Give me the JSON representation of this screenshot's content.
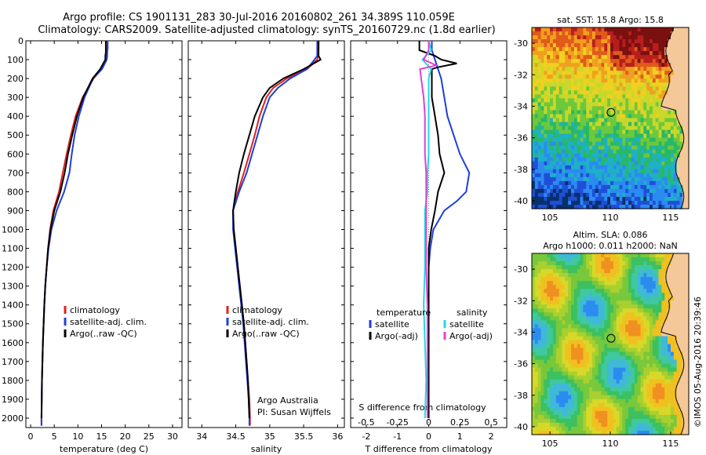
{
  "header": {
    "line1": "Argo profile: CS 1901131_283 30-Jul-2016 20160802_261 34.389S 110.059E",
    "line2": "Climatology: CARS2009. Satellite-adjusted climatology: synTS_20160729.nc (1.8d earlier)"
  },
  "credit": "©IMOS 05-Aug-2016 20:39:46",
  "colors": {
    "climatology": "#e02020",
    "satellite": "#1f3fd8",
    "argo": "#000000",
    "sat_salinity": "#22d8e8",
    "argo_salinity": "#e040d0",
    "land": "#f4c898"
  },
  "depth_axis": {
    "range": [
      0,
      2050
    ],
    "ticks": [
      0,
      100,
      200,
      300,
      400,
      500,
      600,
      700,
      800,
      900,
      1000,
      1100,
      1200,
      1300,
      1400,
      1500,
      1600,
      1700,
      1800,
      1900,
      2000
    ]
  },
  "chart_data": [
    {
      "type": "line",
      "name": "temperature_profile",
      "xlabel": "temperature (deg C)",
      "xlim": [
        -1,
        32
      ],
      "xticks": [
        0,
        5,
        10,
        15,
        20,
        25,
        30
      ],
      "legend": {
        "placement": "bottom-center",
        "entries": [
          "climatology",
          "satellite-adj. clim.",
          "Argo(..raw -QC)"
        ]
      },
      "series": [
        {
          "name": "climatology",
          "color": "#e02020",
          "depth": [
            0,
            40,
            60,
            80,
            100,
            150,
            200,
            300,
            400,
            500,
            600,
            700,
            800,
            900,
            1000,
            1100,
            1200,
            1300,
            1400,
            1500,
            1600,
            1700,
            1800,
            1900,
            2000,
            2040
          ],
          "values": [
            16.2,
            16.2,
            16.1,
            16.1,
            16.0,
            15.0,
            13.3,
            11.0,
            9.5,
            8.5,
            7.6,
            6.8,
            6.0,
            4.8,
            4.1,
            3.7,
            3.4,
            3.1,
            2.9,
            2.75,
            2.6,
            2.5,
            2.4,
            2.35,
            2.3,
            2.3
          ]
        },
        {
          "name": "satellite-adj. clim.",
          "color": "#1f3fd8",
          "depth": [
            0,
            40,
            60,
            80,
            100,
            150,
            200,
            300,
            400,
            500,
            600,
            700,
            800,
            900,
            1000,
            1100,
            1200,
            1300,
            1400,
            1500,
            1600,
            1700,
            1800,
            1900,
            2000,
            2040
          ],
          "values": [
            16.3,
            16.3,
            16.2,
            16.2,
            16.1,
            15.1,
            13.2,
            11.4,
            10.2,
            9.3,
            8.7,
            8.2,
            7.1,
            5.5,
            4.4,
            3.8,
            3.4,
            3.1,
            2.9,
            2.75,
            2.6,
            2.5,
            2.4,
            2.35,
            2.3,
            2.3
          ]
        },
        {
          "name": "Argo(..raw -QC)",
          "color": "#000000",
          "depth": [
            0,
            40,
            60,
            80,
            100,
            150,
            200,
            300,
            400,
            500,
            600,
            700,
            800,
            900,
            1000,
            1100,
            1200,
            1300,
            1400,
            1500,
            1600,
            1700,
            1800,
            1900,
            2000
          ],
          "values": [
            15.9,
            15.9,
            15.9,
            15.8,
            15.8,
            14.7,
            13.1,
            11.1,
            9.8,
            8.8,
            7.9,
            7.2,
            6.3,
            5.0,
            4.2,
            3.7,
            3.4,
            3.1,
            2.9,
            2.75,
            2.6,
            2.5,
            2.4,
            2.35,
            2.3
          ]
        }
      ]
    },
    {
      "type": "line",
      "name": "salinity_profile",
      "xlabel": "salinity",
      "xlim": [
        33.8,
        36.1
      ],
      "xticks": [
        34,
        34.5,
        35,
        35.5,
        36
      ],
      "legend": {
        "placement": "bottom-center",
        "entries": [
          "climatology",
          "satellite-adj. clim.",
          "Argo(..raw -QC)"
        ]
      },
      "annotation": [
        "Argo Australia",
        "PI: Susan Wijffels"
      ],
      "series": [
        {
          "name": "climatology",
          "color": "#e02020",
          "depth": [
            0,
            40,
            80,
            100,
            150,
            200,
            250,
            300,
            400,
            500,
            600,
            700,
            800,
            900,
            1000,
            1100,
            1200,
            1300,
            1400,
            1500,
            1600,
            1700,
            1800,
            1900,
            2000,
            2040
          ],
          "values": [
            35.72,
            35.72,
            35.71,
            35.7,
            35.55,
            35.25,
            35.05,
            34.95,
            34.85,
            34.78,
            34.7,
            34.62,
            34.53,
            34.46,
            34.47,
            34.5,
            34.53,
            34.56,
            34.59,
            34.62,
            34.64,
            34.66,
            34.68,
            34.7,
            34.71,
            34.71
          ]
        },
        {
          "name": "satellite-adj. clim.",
          "color": "#1f3fd8",
          "depth": [
            0,
            40,
            80,
            100,
            150,
            200,
            250,
            300,
            400,
            500,
            600,
            700,
            800,
            900,
            1000,
            1100,
            1200,
            1300,
            1400,
            1500,
            1600,
            1700,
            1800,
            1900,
            2000,
            2040
          ],
          "values": [
            35.7,
            35.7,
            35.7,
            35.66,
            35.55,
            35.3,
            35.12,
            35.0,
            34.9,
            34.82,
            34.74,
            34.66,
            34.55,
            34.46,
            34.46,
            34.49,
            34.52,
            34.55,
            34.58,
            34.61,
            34.63,
            34.65,
            34.67,
            34.69,
            34.7,
            34.7
          ]
        },
        {
          "name": "Argo(..raw -QC)",
          "color": "#000000",
          "depth": [
            0,
            40,
            80,
            100,
            150,
            200,
            250,
            300,
            400,
            500,
            600,
            700,
            800,
            900,
            1000,
            1100,
            1200,
            1300,
            1400,
            1500,
            1600,
            1700,
            1800,
            1900,
            2000
          ],
          "values": [
            35.72,
            35.72,
            35.72,
            35.75,
            35.5,
            35.2,
            35.0,
            34.9,
            34.78,
            34.7,
            34.62,
            34.55,
            34.5,
            34.46,
            34.47,
            34.5,
            34.53,
            34.56,
            34.59,
            34.62,
            34.64,
            34.66,
            34.68,
            34.69,
            34.7
          ]
        }
      ]
    },
    {
      "type": "line",
      "name": "difference_profile",
      "xlabel": "T difference from climatology",
      "xlabel_top": "S difference from climatology",
      "xlim": [
        -2.5,
        2.5
      ],
      "xticks": [
        -2,
        -1,
        0,
        1,
        2
      ],
      "xtick_labels": [
        "-2",
        "-1",
        "0",
        "1",
        "2"
      ],
      "xticks_s": [
        -0.5,
        -0.25,
        0,
        0.25,
        0.5
      ],
      "xtick_labels_s": [
        "-0.5",
        "-0.25",
        "0",
        "0.25",
        "0.5"
      ],
      "legend": {
        "placement": "bottom-center",
        "groups": [
          {
            "title": "temperature",
            "entries": [
              "satellite",
              "Argo(-adj)"
            ]
          },
          {
            "title": "salinity",
            "entries": [
              "satellite",
              "Argo(-adj)"
            ]
          }
        ]
      },
      "series": [
        {
          "name": "temperature satellite",
          "color": "#1f3fd8",
          "depth": [
            0,
            50,
            100,
            150,
            200,
            300,
            400,
            500,
            600,
            700,
            800,
            850,
            900,
            1000,
            1100,
            1200,
            1400,
            1600,
            1800,
            2000
          ],
          "values": [
            0.1,
            0.1,
            0.2,
            0.3,
            0.4,
            0.5,
            0.6,
            0.8,
            1.0,
            1.3,
            1.2,
            0.9,
            0.5,
            0.15,
            0.05,
            0.0,
            0.0,
            0.0,
            0.0,
            0.0
          ]
        },
        {
          "name": "temperature Argo(-adj)",
          "color": "#000000",
          "depth": [
            0,
            50,
            80,
            100,
            120,
            140,
            150,
            180,
            200,
            300,
            400,
            500,
            600,
            700,
            800,
            900,
            1000,
            1100,
            1200,
            1400,
            1600,
            1800,
            2000
          ],
          "values": [
            -0.3,
            -0.3,
            0.2,
            0.4,
            0.9,
            0.3,
            0.1,
            0.1,
            0.1,
            0.1,
            0.2,
            0.3,
            0.35,
            0.5,
            0.3,
            0.2,
            0.08,
            0.0,
            0.0,
            0.0,
            0.0,
            0.0,
            0.0
          ]
        },
        {
          "name": "salinity satellite",
          "color": "#22d8e8",
          "depth": [
            0,
            50,
            100,
            150,
            200,
            300,
            400,
            500,
            600,
            700,
            800,
            900,
            1000,
            1200,
            1400,
            1600,
            1800,
            2000
          ],
          "values": [
            0.0,
            0.02,
            -0.05,
            0.02,
            0.0,
            0.0,
            0.0,
            0.0,
            0.0,
            -0.01,
            -0.01,
            -0.03,
            -0.03,
            -0.03,
            -0.04,
            -0.03,
            -0.02,
            -0.03
          ]
        },
        {
          "name": "salinity Argo(-adj)",
          "color": "#e040d0",
          "depth": [
            0,
            50,
            100,
            130,
            150,
            200,
            300,
            400,
            500,
            600,
            700,
            800,
            900,
            1000,
            1200,
            1400,
            1600,
            1800,
            2000
          ],
          "values": [
            0.0,
            0.0,
            -0.04,
            0.06,
            -0.07,
            -0.06,
            -0.04,
            -0.03,
            -0.03,
            -0.03,
            -0.02,
            -0.02,
            -0.02,
            -0.02,
            -0.02,
            -0.01,
            -0.01,
            -0.01,
            -0.01
          ]
        }
      ]
    },
    {
      "type": "heatmap",
      "name": "sst_map",
      "title": "sat. SST: 15.8  Argo: 15.8",
      "xlim": [
        103.5,
        116.5
      ],
      "ylim": [
        -40.5,
        -29
      ],
      "xticks": [
        105,
        110,
        115
      ],
      "yticks": [
        -30,
        -32,
        -34,
        -36,
        -38,
        -40
      ],
      "marker": {
        "lon": 110.059,
        "lat": -34.389
      }
    },
    {
      "type": "heatmap",
      "name": "sla_map",
      "title": "Altim. SLA: 0.086",
      "subtitle": "Argo h1000: 0.011 h2000: NaN",
      "xlim": [
        103.5,
        116.5
      ],
      "ylim": [
        -40.5,
        -29
      ],
      "xticks": [
        105,
        110,
        115
      ],
      "yticks": [
        -30,
        -32,
        -34,
        -36,
        -38,
        -40
      ],
      "marker": {
        "lon": 110.059,
        "lat": -34.389
      }
    }
  ]
}
